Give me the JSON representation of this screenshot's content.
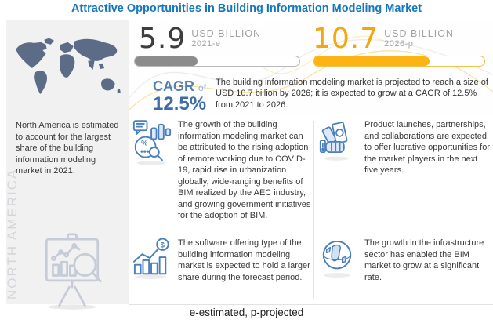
{
  "title": "Attractive Opportunities in Building Information Modeling Market",
  "left_panel": {
    "description": "North America is estimated to account for the largest share of the building information modeling market in 2021.",
    "region_label": "NORTH AMERICA"
  },
  "stats": {
    "estimate": {
      "value": "5.9",
      "unit": "USD BILLION",
      "period": "2021-e",
      "bar_percent": 38
    },
    "projection": {
      "value": "10.7",
      "unit": "USD BILLION",
      "period": "2026-p",
      "bar_percent": 68
    },
    "cagr_label": "CAGR",
    "cagr_of": "of",
    "cagr_value": "12.5%",
    "summary": "The building information modeling market is projected to reach a size of USD 10.7 billion by 2026; it is expected to grow at a CAGR of 12.5% from 2021 to 2026."
  },
  "insights": [
    {
      "icon": "market-analytics-icon",
      "text": "The growth of the building information modeling market can be attributed to the rising adoption of remote working due to COVID-19, rapid rise in urbanization globally, wide-ranging benefits of BIM realized by the AEC industry, and growing government initiatives for the adoption of BIM."
    },
    {
      "icon": "money-hand-icon",
      "text": "Product launches, partnerships, and collaborations are expected to offer lucrative opportunities for the market players in the next five years."
    },
    {
      "icon": "growth-chart-icon",
      "text": "The software offering type of the building information modeling market is expected to hold a larger share during the forecast period."
    },
    {
      "icon": "globe-icon",
      "text": "The growth in the infrastructure sector has enabled the BIM market to grow at a significant rate."
    }
  ],
  "footnote": "e-estimated, p-projected",
  "colors": {
    "title_blue": "#1577be",
    "estimate_gray": "#8c8c8c",
    "projection_amber": "#fcb415",
    "cagr_blue": "#3e6ca6",
    "icon_blue": "#4a7ebc",
    "map_slate": "#5d6c86"
  },
  "chart_data": {
    "type": "bar",
    "title": "Building Information Modeling Market Size",
    "categories": [
      "2021-e",
      "2026-p"
    ],
    "values": [
      5.9,
      10.7
    ],
    "unit": "USD Billion",
    "bar_colors": [
      "#8c8c8c",
      "#fcb415"
    ],
    "annotations": [
      "CAGR of 12.5% from 2021 to 2026",
      "e-estimated, p-projected"
    ]
  }
}
